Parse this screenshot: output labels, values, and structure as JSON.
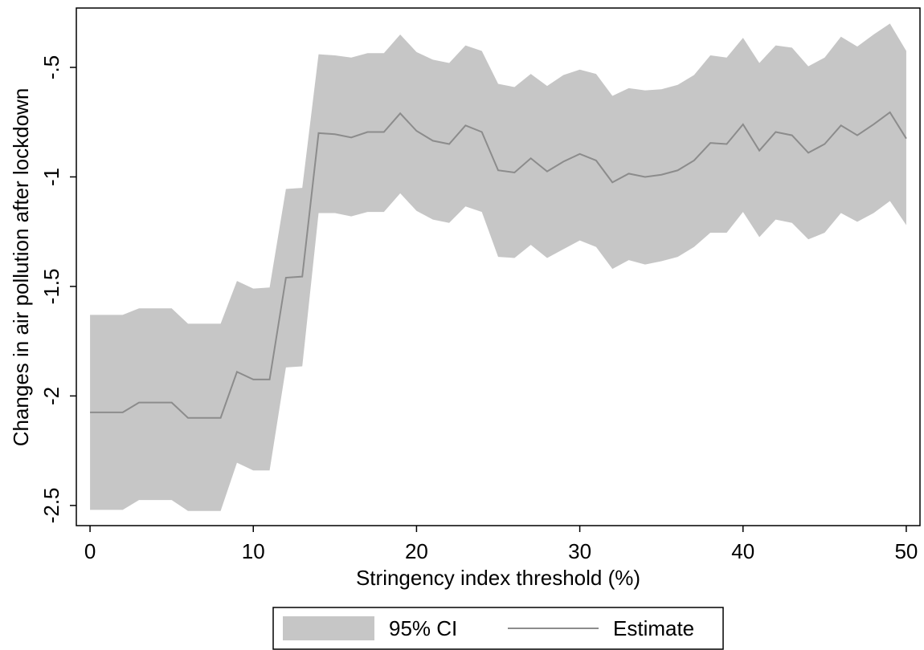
{
  "chart_data": {
    "type": "line",
    "xlabel": "Stringency index threshold (%)",
    "ylabel": "Changes in air pollution after lockdown",
    "x": [
      0,
      1,
      2,
      3,
      4,
      5,
      6,
      7,
      8,
      9,
      10,
      11,
      12,
      13,
      14,
      15,
      16,
      17,
      18,
      19,
      20,
      21,
      22,
      23,
      24,
      25,
      26,
      27,
      28,
      29,
      30,
      31,
      32,
      33,
      34,
      35,
      36,
      37,
      38,
      39,
      40,
      41,
      42,
      43,
      44,
      45,
      46,
      47,
      48,
      49,
      50
    ],
    "series": [
      {
        "name": "95% CI",
        "color": "#c6c6c6",
        "lower": [
          -2.52,
          -2.52,
          -2.52,
          -2.475,
          -2.475,
          -2.475,
          -2.525,
          -2.525,
          -2.525,
          -2.305,
          -2.34,
          -2.34,
          -1.87,
          -1.865,
          -1.165,
          -1.165,
          -1.18,
          -1.16,
          -1.16,
          -1.075,
          -1.155,
          -1.195,
          -1.21,
          -1.135,
          -1.16,
          -1.365,
          -1.37,
          -1.31,
          -1.37,
          -1.33,
          -1.29,
          -1.32,
          -1.42,
          -1.38,
          -1.4,
          -1.385,
          -1.365,
          -1.32,
          -1.255,
          -1.255,
          -1.16,
          -1.275,
          -1.195,
          -1.21,
          -1.285,
          -1.255,
          -1.165,
          -1.205,
          -1.165,
          -1.11,
          -1.22
        ],
        "upper": [
          -1.63,
          -1.63,
          -1.63,
          -1.6,
          -1.6,
          -1.6,
          -1.67,
          -1.67,
          -1.67,
          -1.475,
          -1.51,
          -1.505,
          -1.055,
          -1.05,
          -0.44,
          -0.445,
          -0.455,
          -0.435,
          -0.435,
          -0.35,
          -0.43,
          -0.465,
          -0.48,
          -0.4,
          -0.425,
          -0.575,
          -0.59,
          -0.53,
          -0.585,
          -0.535,
          -0.51,
          -0.53,
          -0.63,
          -0.595,
          -0.605,
          -0.6,
          -0.58,
          -0.535,
          -0.445,
          -0.455,
          -0.365,
          -0.48,
          -0.4,
          -0.41,
          -0.495,
          -0.455,
          -0.36,
          -0.405,
          -0.35,
          -0.3,
          -0.425
        ]
      },
      {
        "name": "Estimate",
        "color": "#8c8c8c",
        "values": [
          -2.075,
          -2.075,
          -2.075,
          -2.03,
          -2.03,
          -2.03,
          -2.1,
          -2.1,
          -2.1,
          -1.89,
          -1.925,
          -1.925,
          -1.46,
          -1.455,
          -0.8,
          -0.805,
          -0.82,
          -0.795,
          -0.795,
          -0.71,
          -0.79,
          -0.835,
          -0.85,
          -0.765,
          -0.795,
          -0.97,
          -0.98,
          -0.915,
          -0.975,
          -0.93,
          -0.895,
          -0.925,
          -1.025,
          -0.985,
          -1.0,
          -0.99,
          -0.97,
          -0.925,
          -0.845,
          -0.85,
          -0.76,
          -0.88,
          -0.795,
          -0.81,
          -0.89,
          -0.85,
          -0.765,
          -0.81,
          -0.76,
          -0.705,
          -0.825
        ]
      }
    ],
    "xlim": [
      -0.84,
      50.84
    ],
    "xticks": [
      0,
      10,
      20,
      30,
      40,
      50
    ],
    "ylim": [
      -2.592,
      -0.229
    ],
    "yticks": [
      {
        "value": -2.5,
        "label": "-2.5"
      },
      {
        "value": -2,
        "label": "-2"
      },
      {
        "value": -1.5,
        "label": "-1.5"
      },
      {
        "value": -1,
        "label": "-1"
      },
      {
        "value": -0.5,
        "label": "-.5"
      }
    ],
    "grid": false,
    "legend": "bottom"
  }
}
